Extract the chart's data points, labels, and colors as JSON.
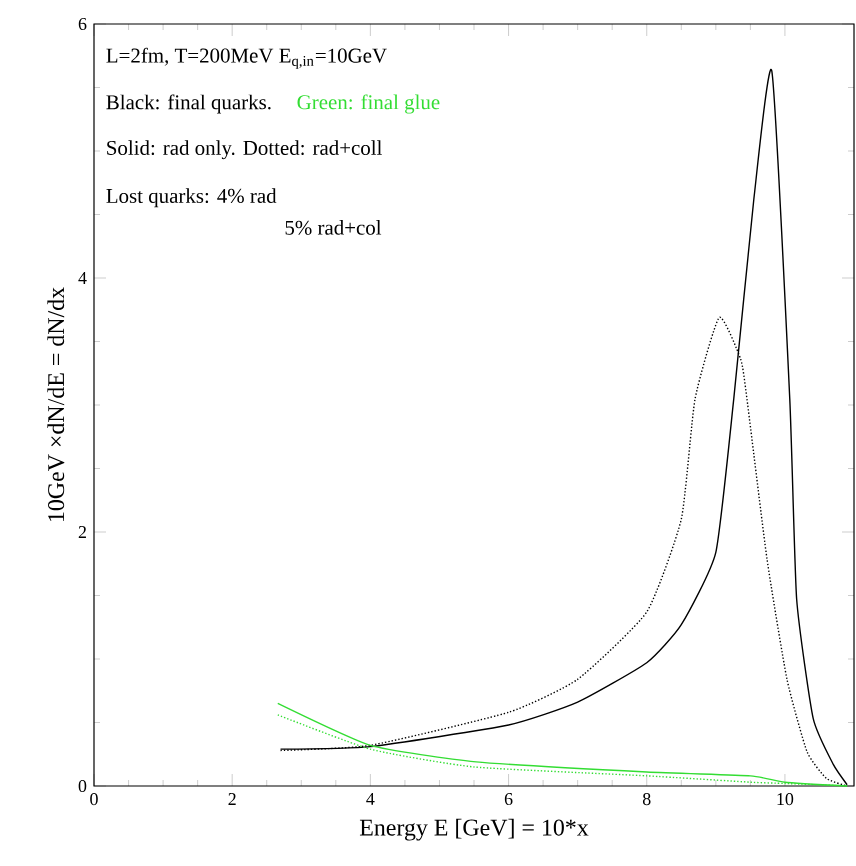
{
  "chart_data": {
    "type": "line",
    "xlabel": "Energy E [GeV] = 10*x",
    "ylabel": "10GeV ×dN/dE = dN/dx",
    "annotations": [
      "L=2fm, T=200MeV E$_{q,in}$=10GeV",
      "Black: final quarks.",
      "Green:  final glue",
      "Solid: rad only.  Dotted: rad+coll",
      "Lost quarks: 4% rad",
      "5% rad+col"
    ],
    "xlim": [
      0,
      11
    ],
    "ylim": [
      0,
      6
    ],
    "xticks": [
      0,
      2,
      4,
      6,
      8,
      10
    ],
    "yticks": [
      0,
      2,
      4,
      6
    ],
    "series": [
      {
        "color": "#000000",
        "line_style": "solid",
        "x": [
          2.7,
          4,
          6,
          7,
          8,
          8.5,
          9,
          9.26,
          9.55,
          9.81,
          10.07,
          10.17,
          10.41,
          10.7,
          10.9
        ],
        "values": [
          0.29,
          0.31,
          0.48,
          0.66,
          0.97,
          1.27,
          1.84,
          3.05,
          4.62,
          5.63,
          3.05,
          1.47,
          0.53,
          0.17,
          0.01
        ]
      },
      {
        "color": "#000000",
        "line_style": "dotted",
        "x": [
          2.7,
          4,
          6,
          7,
          8,
          8.5,
          8.7,
          9.05,
          9.36,
          9.45,
          9.74,
          10.03,
          10.32,
          10.6,
          10.9
        ],
        "values": [
          0.28,
          0.32,
          0.58,
          0.84,
          1.37,
          2.1,
          3.05,
          3.69,
          3.36,
          3.05,
          1.79,
          0.84,
          0.27,
          0.06,
          0
        ]
      },
      {
        "color": "#33dd33",
        "line_style": "solid",
        "x": [
          2.66,
          4,
          5.53,
          8,
          9.5,
          10,
          10.9
        ],
        "values": [
          0.65,
          0.32,
          0.19,
          0.11,
          0.08,
          0.03,
          0
        ]
      },
      {
        "color": "#33dd33",
        "line_style": "dotted",
        "x": [
          2.66,
          4,
          5.5,
          8,
          9.5,
          10,
          10.9
        ],
        "values": [
          0.56,
          0.29,
          0.15,
          0.08,
          0.03,
          0.02,
          0
        ]
      }
    ]
  }
}
